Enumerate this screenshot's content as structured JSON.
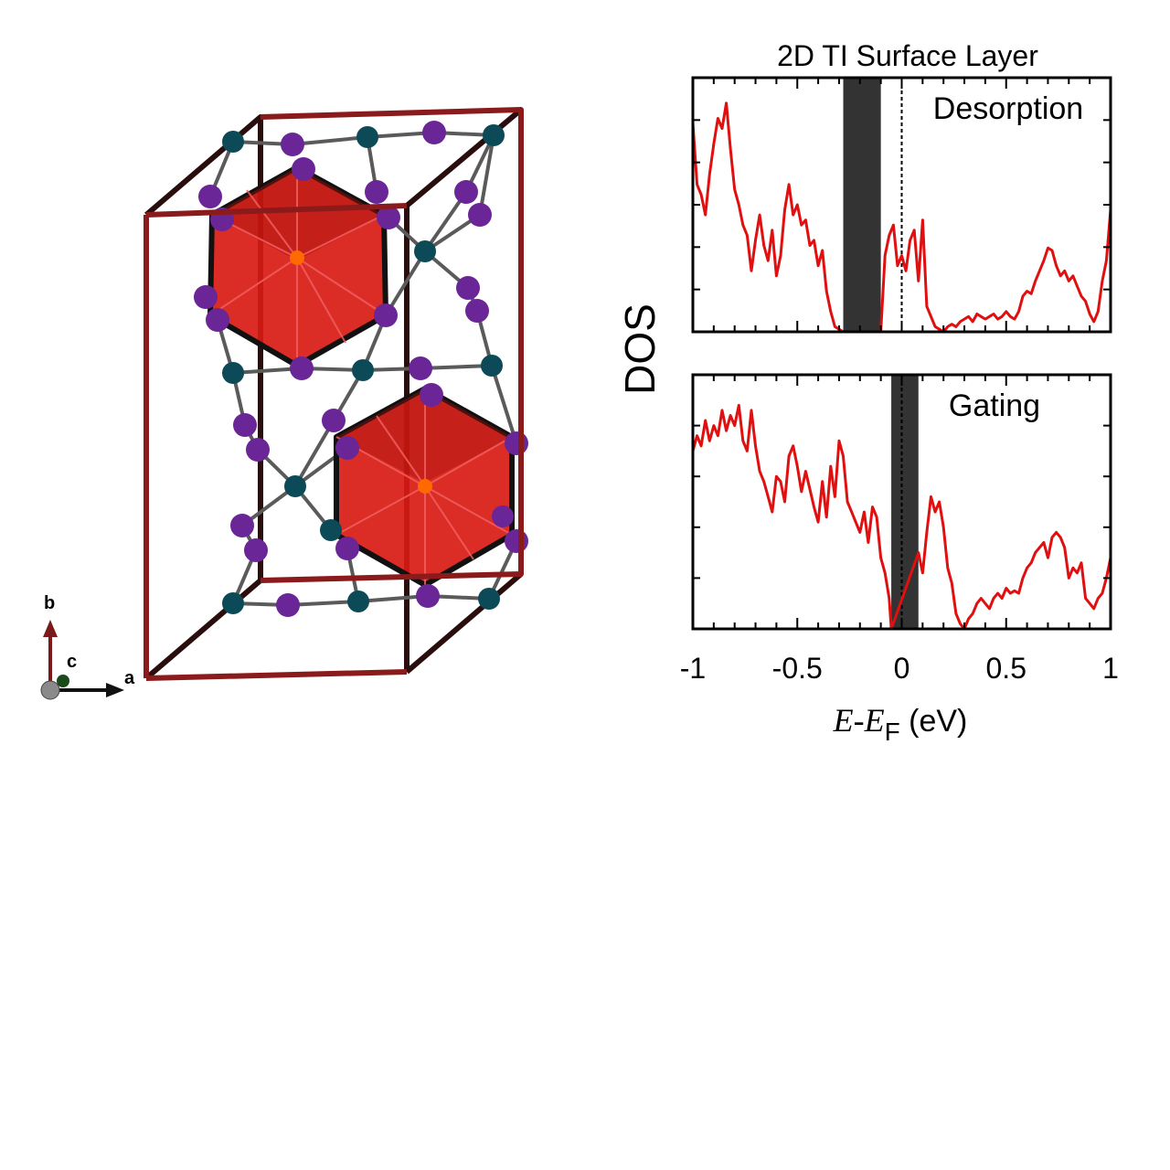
{
  "structure": {
    "axes_labels": {
      "a": "a",
      "b": "b",
      "c": "c"
    },
    "colors": {
      "cell_edge_dark": "#2a0e0e",
      "cell_edge_red": "#8b1a1a",
      "polyhedron_fill": "#d81a12",
      "polyhedron_edge": "#111111",
      "center_atom": "#ff6a00",
      "atom_purple": "#6a2596",
      "atom_teal": "#0d4a57",
      "bond": "#555555"
    }
  },
  "chart_data": {
    "type": "line",
    "title": "2D TI Surface Layer",
    "ylabel": "DOS",
    "xlabel_var": "E",
    "xlabel_minus": "-",
    "xlabel_var2": "E",
    "xlabel_sub": "F",
    "xlabel_unit": " (eV)",
    "xlim": [
      -1,
      1
    ],
    "x_ticks": [
      -1,
      -0.5,
      0,
      0.5,
      1
    ],
    "x_tick_labels": [
      "-1",
      "-0.5",
      "0",
      "0.5",
      "1"
    ],
    "line_color": "#e01010",
    "gap_color": "#333333",
    "panels": [
      {
        "name": "Desorption",
        "label": "Desorption",
        "ylim": [
          0,
          1
        ],
        "gap": [
          -0.28,
          -0.1
        ],
        "x": [
          -1.0,
          -0.98,
          -0.96,
          -0.94,
          -0.92,
          -0.9,
          -0.88,
          -0.86,
          -0.84,
          -0.82,
          -0.8,
          -0.78,
          -0.76,
          -0.74,
          -0.72,
          -0.7,
          -0.68,
          -0.66,
          -0.64,
          -0.62,
          -0.6,
          -0.58,
          -0.56,
          -0.54,
          -0.52,
          -0.5,
          -0.48,
          -0.46,
          -0.44,
          -0.42,
          -0.4,
          -0.38,
          -0.36,
          -0.34,
          -0.32,
          -0.3,
          -0.28,
          -0.1,
          -0.08,
          -0.06,
          -0.04,
          -0.02,
          0.0,
          0.02,
          0.04,
          0.06,
          0.08,
          0.1,
          0.12,
          0.14,
          0.16,
          0.18,
          0.2,
          0.22,
          0.24,
          0.26,
          0.28,
          0.3,
          0.32,
          0.34,
          0.36,
          0.38,
          0.4,
          0.42,
          0.44,
          0.46,
          0.48,
          0.5,
          0.52,
          0.54,
          0.56,
          0.58,
          0.6,
          0.62,
          0.64,
          0.66,
          0.68,
          0.7,
          0.72,
          0.74,
          0.76,
          0.78,
          0.8,
          0.82,
          0.84,
          0.86,
          0.88,
          0.9,
          0.92,
          0.94,
          0.96,
          0.98,
          1.0
        ],
        "y": [
          0.82,
          0.58,
          0.54,
          0.46,
          0.62,
          0.74,
          0.84,
          0.8,
          0.9,
          0.72,
          0.56,
          0.5,
          0.42,
          0.38,
          0.24,
          0.36,
          0.46,
          0.34,
          0.28,
          0.4,
          0.22,
          0.3,
          0.48,
          0.58,
          0.46,
          0.5,
          0.42,
          0.44,
          0.34,
          0.36,
          0.26,
          0.32,
          0.16,
          0.08,
          0.02,
          0.01,
          0.0,
          0.0,
          0.3,
          0.38,
          0.42,
          0.26,
          0.3,
          0.24,
          0.36,
          0.4,
          0.2,
          0.44,
          0.1,
          0.06,
          0.02,
          0.01,
          0.0,
          0.02,
          0.03,
          0.02,
          0.04,
          0.05,
          0.06,
          0.04,
          0.07,
          0.06,
          0.05,
          0.06,
          0.07,
          0.05,
          0.06,
          0.08,
          0.06,
          0.05,
          0.08,
          0.14,
          0.16,
          0.15,
          0.2,
          0.24,
          0.28,
          0.33,
          0.32,
          0.26,
          0.22,
          0.24,
          0.2,
          0.22,
          0.18,
          0.14,
          0.12,
          0.07,
          0.04,
          0.08,
          0.2,
          0.28,
          0.48
        ]
      },
      {
        "name": "Gating",
        "label": "Gating",
        "ylim": [
          0,
          1
        ],
        "gap": [
          -0.05,
          0.08
        ],
        "x": [
          -1.0,
          -0.98,
          -0.96,
          -0.94,
          -0.92,
          -0.9,
          -0.88,
          -0.86,
          -0.84,
          -0.82,
          -0.8,
          -0.78,
          -0.76,
          -0.74,
          -0.72,
          -0.7,
          -0.68,
          -0.66,
          -0.64,
          -0.62,
          -0.6,
          -0.58,
          -0.56,
          -0.54,
          -0.52,
          -0.5,
          -0.48,
          -0.46,
          -0.44,
          -0.42,
          -0.4,
          -0.38,
          -0.36,
          -0.34,
          -0.32,
          -0.3,
          -0.28,
          -0.26,
          -0.24,
          -0.22,
          -0.2,
          -0.18,
          -0.16,
          -0.14,
          -0.12,
          -0.1,
          -0.08,
          -0.06,
          -0.05,
          0.08,
          0.1,
          0.12,
          0.14,
          0.16,
          0.18,
          0.2,
          0.22,
          0.24,
          0.26,
          0.28,
          0.3,
          0.32,
          0.34,
          0.36,
          0.38,
          0.4,
          0.42,
          0.44,
          0.46,
          0.48,
          0.5,
          0.52,
          0.54,
          0.56,
          0.58,
          0.6,
          0.62,
          0.64,
          0.66,
          0.68,
          0.7,
          0.72,
          0.74,
          0.76,
          0.78,
          0.8,
          0.82,
          0.84,
          0.86,
          0.88,
          0.9,
          0.92,
          0.94,
          0.96,
          0.98,
          1.0
        ],
        "y": [
          0.7,
          0.76,
          0.72,
          0.82,
          0.74,
          0.8,
          0.76,
          0.86,
          0.78,
          0.84,
          0.8,
          0.88,
          0.74,
          0.7,
          0.86,
          0.72,
          0.62,
          0.58,
          0.52,
          0.46,
          0.6,
          0.58,
          0.5,
          0.68,
          0.72,
          0.64,
          0.54,
          0.62,
          0.55,
          0.48,
          0.42,
          0.58,
          0.44,
          0.64,
          0.52,
          0.74,
          0.68,
          0.5,
          0.46,
          0.42,
          0.38,
          0.46,
          0.34,
          0.48,
          0.44,
          0.28,
          0.22,
          0.12,
          0.0,
          0.3,
          0.22,
          0.38,
          0.52,
          0.46,
          0.5,
          0.4,
          0.24,
          0.18,
          0.06,
          0.02,
          0.0,
          0.04,
          0.06,
          0.1,
          0.12,
          0.1,
          0.08,
          0.12,
          0.14,
          0.12,
          0.16,
          0.14,
          0.15,
          0.14,
          0.2,
          0.24,
          0.26,
          0.3,
          0.32,
          0.34,
          0.28,
          0.36,
          0.38,
          0.36,
          0.32,
          0.2,
          0.24,
          0.22,
          0.26,
          0.12,
          0.1,
          0.08,
          0.12,
          0.14,
          0.2,
          0.28
        ]
      }
    ]
  }
}
